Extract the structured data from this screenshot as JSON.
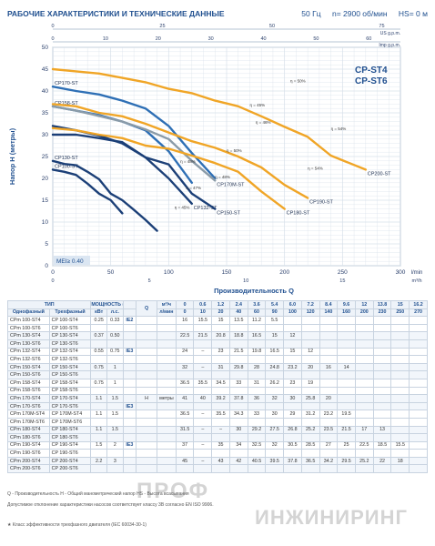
{
  "header": {
    "title": "РАБОЧИЕ ХАРАКТЕРИСТИКИ И ТЕХНИЧЕСКИЕ ДАННЫЕ",
    "freq": "50 Гц",
    "speed": "n= 2900 об/мин",
    "hs": "HS= 0 м"
  },
  "chart_data": {
    "type": "line",
    "title": "CP-ST4\nCP-ST6",
    "xlabel": "Производительность Q",
    "ylabel": "Напор H (метры)",
    "x_unit": "l/min",
    "x2_unit": "US g.p.m.",
    "x3_unit": "Imp g.p.m.",
    "x4_unit": "m³/h",
    "xlim": [
      0,
      300
    ],
    "ylim": [
      0,
      50
    ],
    "x_ticks": [
      0,
      50,
      100,
      150,
      200,
      250,
      300
    ],
    "y_ticks": [
      0,
      5,
      10,
      15,
      20,
      25,
      30,
      35,
      40,
      45,
      50
    ],
    "x_ticks_us": [
      0,
      25,
      50,
      75
    ],
    "x_ticks_imp": [
      0,
      10,
      20,
      30,
      40,
      50,
      60
    ],
    "x_ticks_m3h": [
      0,
      5,
      10,
      15
    ],
    "mei_label": "MEI≥ 0.40",
    "series": [
      {
        "name": "CP100-ST",
        "color": "#1b3f77",
        "x": [
          0,
          10,
          20,
          30,
          40,
          50,
          60
        ],
        "y": [
          22,
          21.5,
          20.8,
          18.8,
          16.5,
          15,
          12
        ]
      },
      {
        "name": "CP130-ST",
        "color": "#1b3f77",
        "x": [
          0,
          10,
          20,
          30,
          40,
          50,
          60,
          70,
          80,
          90
        ],
        "y": [
          24,
          23.3,
          23,
          21.5,
          19.8,
          16.5,
          15,
          12.8,
          10.5,
          8
        ]
      },
      {
        "name": "CP132-ST",
        "color": "#1b3f77",
        "x": [
          0,
          20,
          40,
          60,
          80,
          100,
          120
        ],
        "y": [
          30,
          30,
          29.2,
          28.3,
          24.8,
          20,
          14.2
        ]
      },
      {
        "name": "CP150-ST",
        "color": "#1b3f77",
        "x": [
          0,
          20,
          40,
          60,
          80,
          100,
          120,
          140
        ],
        "y": [
          32,
          31,
          29.8,
          28,
          24.8,
          23.2,
          16.5,
          13
        ]
      },
      {
        "name": "CP158-ST",
        "color": "#2e6fb5",
        "x": [
          0,
          20,
          40,
          60,
          80,
          100,
          120
        ],
        "y": [
          36.5,
          35.5,
          34.5,
          33,
          31,
          26.2,
          19
        ]
      },
      {
        "name": "CP170-ST",
        "color": "#2e6fb5",
        "x": [
          0,
          20,
          40,
          60,
          80,
          100,
          120,
          140
        ],
        "y": [
          41,
          40,
          39.2,
          37.8,
          36,
          32,
          25.8,
          20
        ]
      },
      {
        "name": "CP170M-ST",
        "color": "#8a9ba8",
        "x": [
          0,
          20,
          40,
          60,
          80,
          100,
          120,
          140
        ],
        "y": [
          36.5,
          35.5,
          34.3,
          33,
          31.2,
          29,
          24,
          19.5
        ]
      },
      {
        "name": "CP180-ST",
        "color": "#f0a526",
        "x": [
          0,
          20,
          40,
          60,
          80,
          100,
          120,
          140,
          160,
          180,
          200
        ],
        "y": [
          31.5,
          31,
          30,
          29.2,
          27.5,
          26.8,
          25.2,
          23.5,
          21.5,
          17,
          13
        ]
      },
      {
        "name": "CP190-ST",
        "color": "#f0a526",
        "x": [
          0,
          20,
          40,
          60,
          80,
          100,
          120,
          140,
          160,
          180,
          200,
          220
        ],
        "y": [
          37,
          36.5,
          35,
          34.2,
          32.5,
          30.5,
          28.5,
          27,
          25,
          22.5,
          18.5,
          15.5
        ]
      },
      {
        "name": "CP200-ST",
        "color": "#f0a526",
        "x": [
          0,
          20,
          40,
          60,
          80,
          100,
          120,
          140,
          160,
          180,
          200,
          220,
          240,
          270
        ],
        "y": [
          45,
          44.5,
          44,
          43,
          42,
          40.5,
          39.5,
          37.8,
          36.5,
          34.2,
          31.8,
          29.5,
          25.2,
          22
        ]
      }
    ],
    "efficiency_labels": [
      "η = 50%",
      "η = 54%",
      "η = 54%",
      "η = 45%",
      "η = 46%",
      "η = 48%",
      "η = 50%",
      "η = 48%",
      "η = 47%",
      "η = 45%"
    ]
  },
  "table": {
    "head_type": "ТИП",
    "head_power": "МОЩНОСТЬ (P₂)",
    "head_q": "Q",
    "head_m3h": "м³/ч",
    "head_lmin": "л/мин",
    "head_h": "H",
    "head_meters": "метры",
    "col_single": "Однофазный",
    "col_three": "Трехфазный",
    "col_kw": "кВт",
    "col_hp": "л.с.",
    "q_m3h": [
      "0",
      "0.6",
      "1.2",
      "2.4",
      "3.6",
      "5.4",
      "6.0",
      "7.2",
      "8.4",
      "9.6",
      "9.6",
      "12",
      "13.8",
      "15",
      "16.2"
    ],
    "q_lmin": [
      "0",
      "10",
      "20",
      "40",
      "60",
      "90",
      "100",
      "120",
      "140",
      "160",
      "160",
      "200",
      "230",
      "250",
      "270"
    ],
    "rows": [
      {
        "single": "CPm 100-ST4",
        "three": "CP 100-ST4",
        "kw": "0.25",
        "hp": "0.33",
        "ie": "IE2",
        "h": [
          "",
          "16",
          "15.5",
          "15",
          "13.5",
          "11.2",
          "5.5",
          "",
          "",
          "",
          "",
          "",
          "",
          "",
          ""
        ]
      },
      {
        "single": "CPm 100-ST6",
        "three": "CP 100-ST6",
        "kw": "",
        "hp": "",
        "ie": "",
        "h": [
          "",
          "",
          "",
          "",
          "",
          "",
          "",
          "",
          "",
          "",
          "",
          "",
          "",
          "",
          ""
        ]
      },
      {
        "single": "CPm 130-ST4",
        "three": "CP 130-ST4",
        "kw": "0.37",
        "hp": "0.50",
        "ie": "",
        "h": [
          "",
          "22.5",
          "21.5",
          "20.8",
          "18.8",
          "16.5",
          "15",
          "12",
          "",
          "",
          "",
          "",
          "",
          "",
          ""
        ]
      },
      {
        "single": "CPm 130-ST6",
        "three": "CP 130-ST6",
        "kw": "",
        "hp": "",
        "ie": "",
        "h": [
          "",
          "",
          "",
          "",
          "",
          "",
          "",
          "",
          "",
          "",
          "",
          "",
          "",
          "",
          ""
        ]
      },
      {
        "single": "CPm 132-ST4",
        "three": "CP 132-ST4",
        "kw": "0.55",
        "hp": "0.75",
        "ie": "IE3",
        "h": [
          "",
          "24",
          "–",
          "23",
          "21.5",
          "19.8",
          "16.5",
          "15",
          "12",
          "",
          "",
          "",
          "",
          "",
          ""
        ]
      },
      {
        "single": "CPm 132-ST6",
        "three": "CP 132-ST6",
        "kw": "",
        "hp": "",
        "ie": "",
        "h": [
          "",
          "",
          "",
          "",
          "",
          "",
          "",
          "",
          "",
          "",
          "",
          "",
          "",
          "",
          ""
        ]
      },
      {
        "single": "CPm 150-ST4",
        "three": "CP 150-ST4",
        "kw": "0.75",
        "hp": "1",
        "ie": "",
        "h": [
          "",
          "32",
          "–",
          "31",
          "29.8",
          "28",
          "24.8",
          "23.2",
          "20",
          "16",
          "14",
          "",
          "",
          "",
          ""
        ]
      },
      {
        "single": "CPm 150-ST6",
        "three": "CP 150-ST6",
        "kw": "",
        "hp": "",
        "ie": "",
        "h": [
          "",
          "",
          "",
          "",
          "",
          "",
          "",
          "",
          "",
          "",
          "",
          "",
          "",
          "",
          ""
        ]
      },
      {
        "single": "CPm 158-ST4",
        "three": "CP 158-ST4",
        "kw": "0.75",
        "hp": "1",
        "ie": "",
        "h": [
          "",
          "36.5",
          "35.5",
          "34.5",
          "33",
          "31",
          "26.2",
          "23",
          "19",
          "",
          "",
          "",
          "",
          "",
          ""
        ]
      },
      {
        "single": "CPm 158-ST6",
        "three": "CP 158-ST6",
        "kw": "",
        "hp": "",
        "ie": "",
        "h": [
          "",
          "",
          "",
          "",
          "",
          "",
          "",
          "",
          "",
          "",
          "",
          "",
          "",
          "",
          ""
        ]
      },
      {
        "single": "CPm 170-ST4",
        "three": "CP 170-ST4",
        "kw": "1.1",
        "hp": "1.5",
        "ie": "",
        "h": [
          "",
          "41",
          "40",
          "39.2",
          "37.8",
          "36",
          "32",
          "30",
          "25.8",
          "20",
          "",
          "",
          "",
          "",
          ""
        ]
      },
      {
        "single": "CPm 170-ST6",
        "three": "CP 170-ST6",
        "kw": "",
        "hp": "",
        "ie": "IE3",
        "h": [
          "",
          "",
          "",
          "",
          "",
          "",
          "",
          "",
          "",
          "",
          "",
          "",
          "",
          "",
          ""
        ]
      },
      {
        "single": "CPm 170M-ST4",
        "three": "CP 170M-ST4",
        "kw": "1.1",
        "hp": "1.5",
        "ie": "",
        "h": [
          "",
          "36.5",
          "–",
          "35.5",
          "34.3",
          "33",
          "30",
          "29",
          "31.2",
          "23.2",
          "19.5",
          "",
          "",
          "",
          ""
        ]
      },
      {
        "single": "CPm 170M-ST6",
        "three": "CP 170M-ST6",
        "kw": "",
        "hp": "",
        "ie": "",
        "h": [
          "",
          "",
          "",
          "",
          "",
          "",
          "",
          "",
          "",
          "",
          "",
          "",
          "",
          "",
          ""
        ]
      },
      {
        "single": "CPm 180-ST4",
        "three": "CP 180-ST4",
        "kw": "1.1",
        "hp": "1.5",
        "ie": "",
        "h": [
          "",
          "31.5",
          "–",
          "–",
          "30",
          "29.2",
          "27.5",
          "26.8",
          "25.2",
          "23.5",
          "21.5",
          "17",
          "13",
          "",
          ""
        ]
      },
      {
        "single": "CPm 180-ST6",
        "three": "CP 180-ST6",
        "kw": "",
        "hp": "",
        "ie": "",
        "h": [
          "",
          "",
          "",
          "",
          "",
          "",
          "",
          "",
          "",
          "",
          "",
          "",
          "",
          "",
          ""
        ]
      },
      {
        "single": "CPm 190-ST4",
        "three": "CP 190-ST4",
        "kw": "1.5",
        "hp": "2",
        "ie": "IE3",
        "h": [
          "",
          "37",
          "–",
          "35",
          "34",
          "32.5",
          "32",
          "30.5",
          "28.5",
          "27",
          "25",
          "22.5",
          "18.5",
          "15.5",
          ""
        ]
      },
      {
        "single": "CPm 190-ST6",
        "three": "CP 190-ST6",
        "kw": "",
        "hp": "",
        "ie": "",
        "h": [
          "",
          "",
          "",
          "",
          "",
          "",
          "",
          "",
          "",
          "",
          "",
          "",
          "",
          "",
          ""
        ]
      },
      {
        "single": "CPm 200-ST4",
        "three": "CP 200-ST4",
        "kw": "2.2",
        "hp": "3",
        "ie": "",
        "h": [
          "",
          "45",
          "–",
          "43",
          "42",
          "40.5",
          "39.5",
          "37.8",
          "36.5",
          "34.2",
          "29.5",
          "25.2",
          "22",
          "18",
          ""
        ]
      },
      {
        "single": "CPm 200-ST6",
        "three": "CP 200-ST6",
        "kw": "",
        "hp": "",
        "ie": "",
        "h": [
          "",
          "",
          "",
          "",
          "",
          "",
          "",
          "",
          "",
          "",
          "",
          "",
          "",
          "",
          ""
        ]
      }
    ]
  },
  "footer": {
    "line1": "Q - Производительность  H - Общий манометрический напор  HS - Высота всасывания",
    "line2": "Допустимое отклонение характеристики насосов соответствует классу 3B согласно EN ISO 9906.",
    "line3": "★ Класс эффективности трехфазного двигателя (IEC 60034-30-1)"
  },
  "watermark": {
    "a": "ПРОФ",
    "b": "ИНЖИНИРИНГ"
  }
}
